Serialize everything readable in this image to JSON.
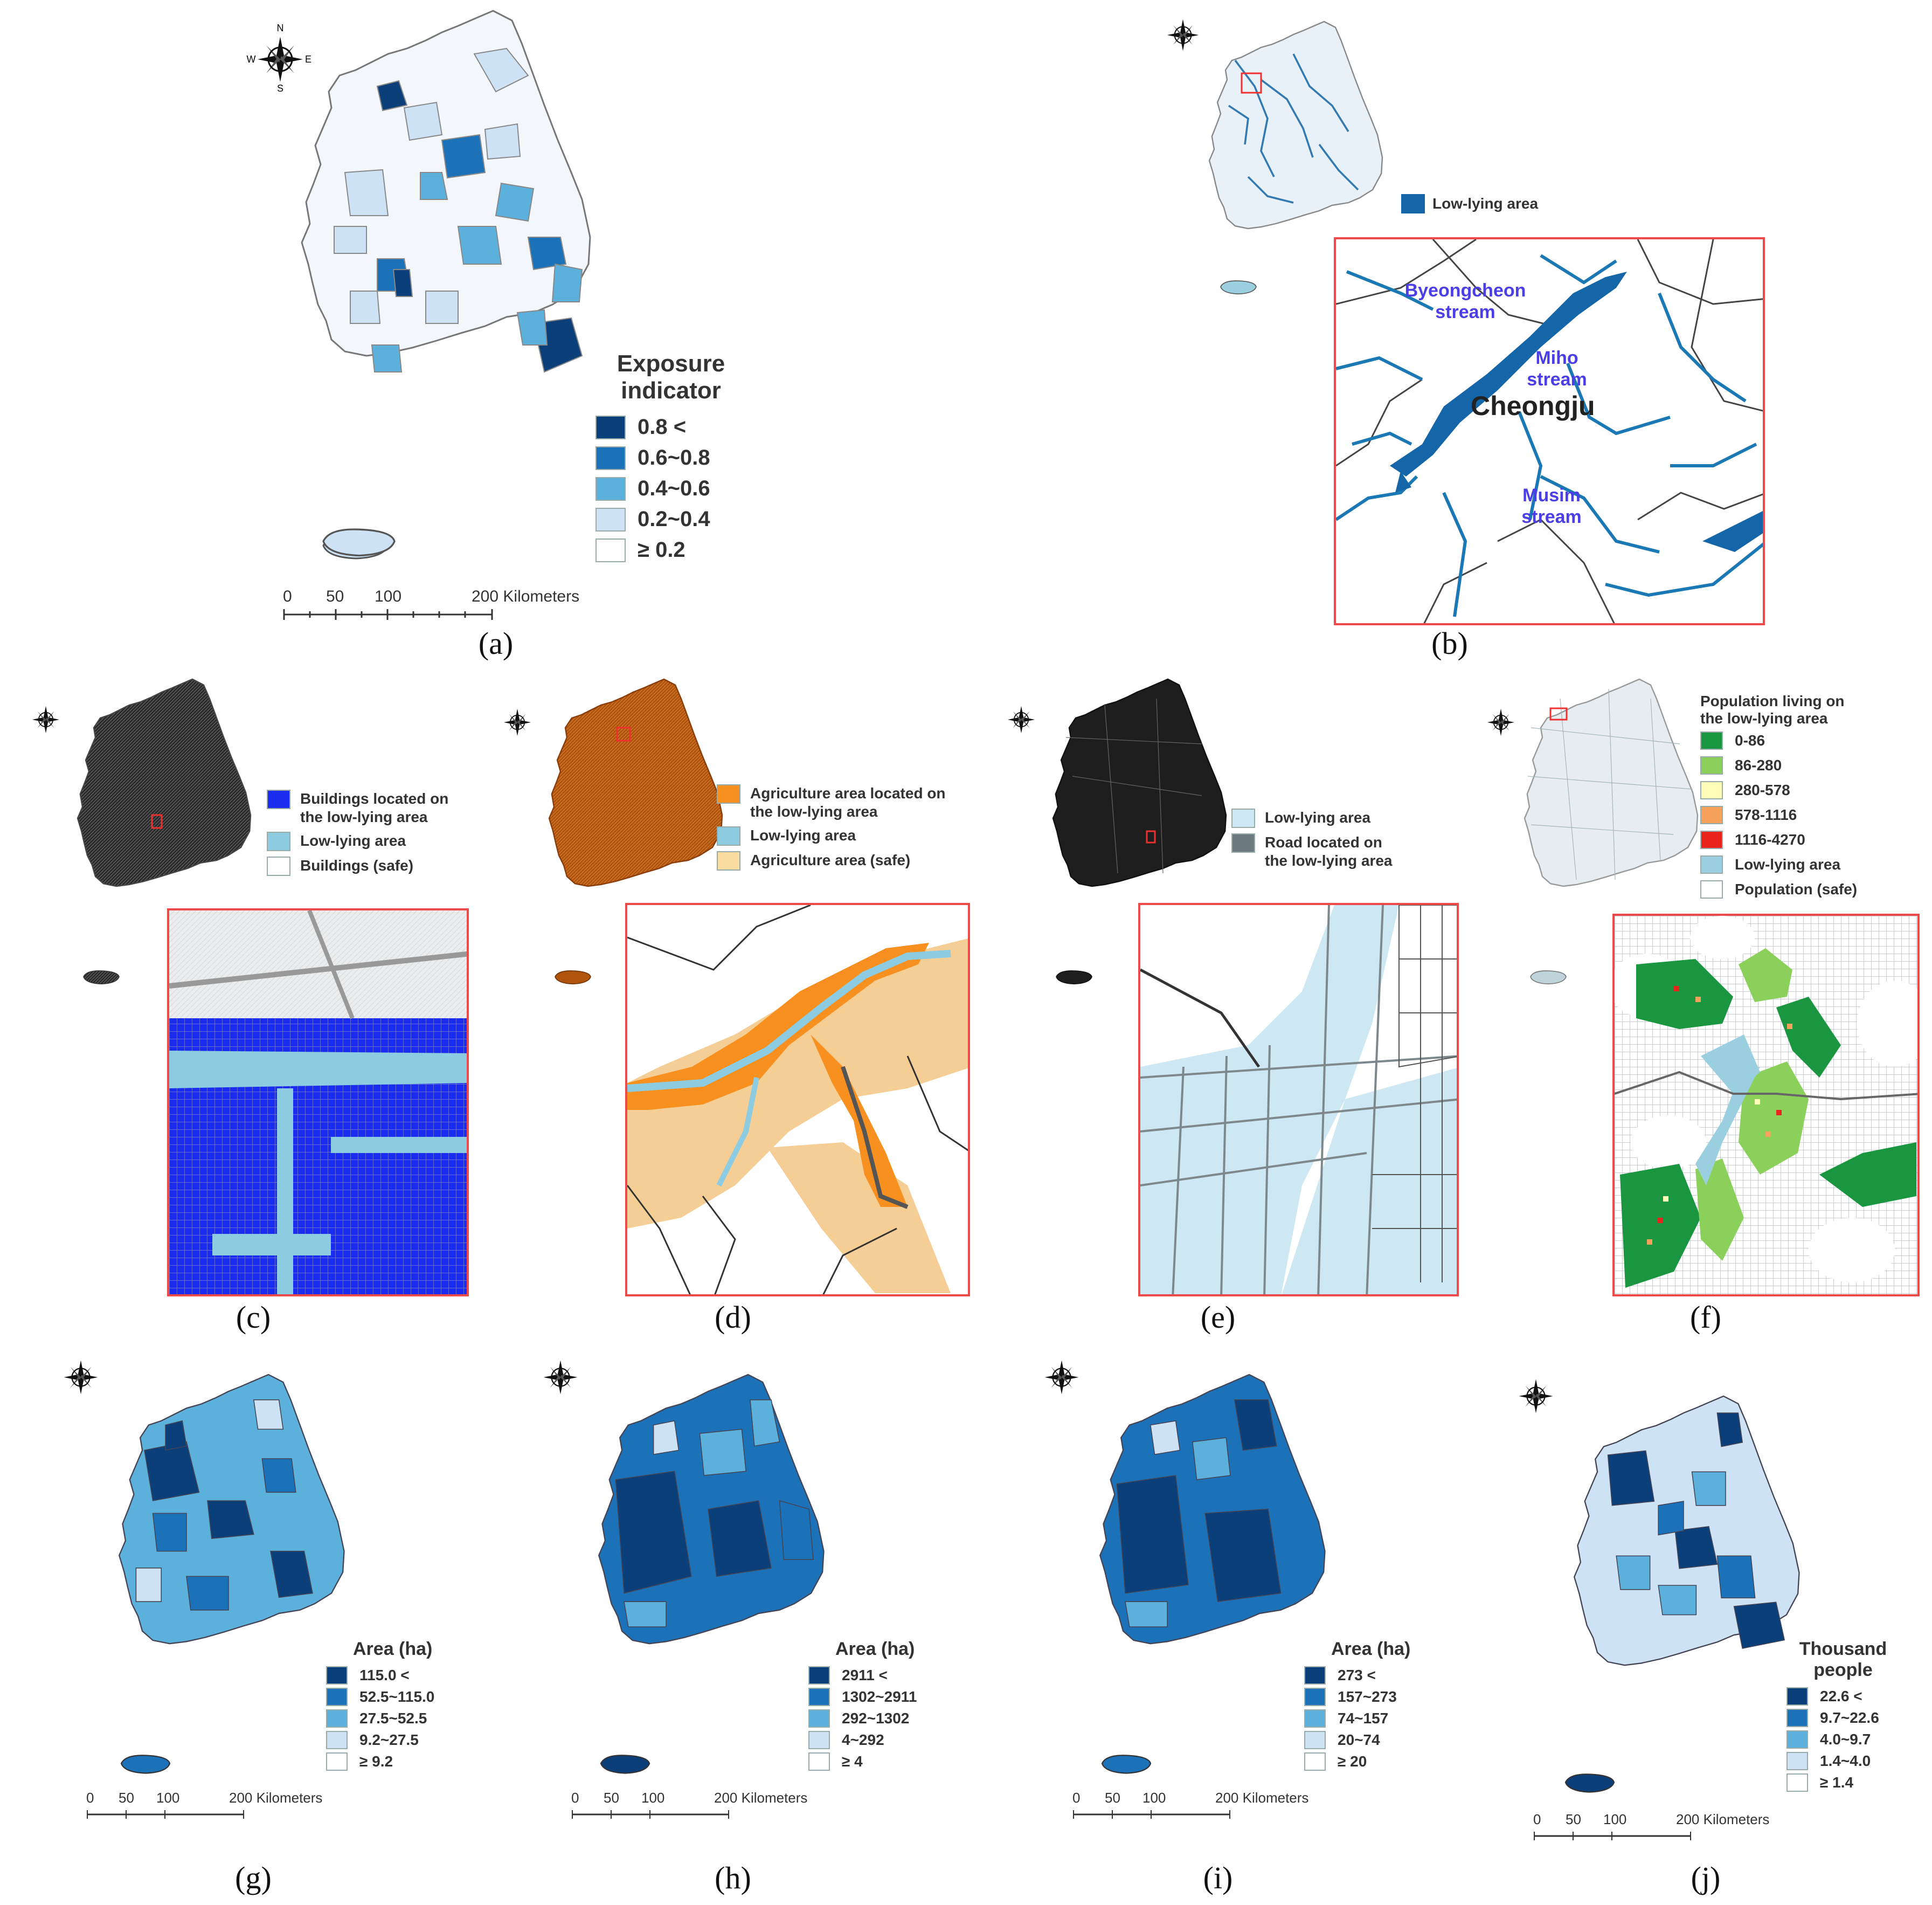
{
  "captions": {
    "a": "(a)",
    "b": "(b)",
    "c": "(c)",
    "d": "(d)",
    "e": "(e)",
    "f": "(f)",
    "g": "(g)",
    "h": "(h)",
    "i": "(i)",
    "j": "(j)"
  },
  "compass": {
    "n": "N",
    "s": "S",
    "e": "E",
    "w": "W"
  },
  "scalebar_ticks": [
    "0",
    "50",
    "100",
    "200 Kilometers"
  ],
  "panel_a": {
    "legend_title_1": "Exposure",
    "legend_title_2": "indicator",
    "classes": [
      {
        "label": "0.8  <",
        "color": "#0b3f7a"
      },
      {
        "label": "0.6~0.8",
        "color": "#1c72b8"
      },
      {
        "label": "0.4~0.6",
        "color": "#5cb0dc"
      },
      {
        "label": "0.2~0.4",
        "color": "#cde3f5"
      },
      {
        "label": "≥ 0.2",
        "color": "#ffffff"
      }
    ]
  },
  "panel_b": {
    "legend": [
      {
        "label": "Low-lying area",
        "color": "#1466a8"
      }
    ],
    "inset_labels": {
      "byeong_1": "Byeongcheon",
      "byeong_2": "stream",
      "miho_1": "Miho",
      "miho_2": "stream",
      "city": "Cheongju",
      "musim_1": "Musim",
      "musim_2": "stream"
    }
  },
  "panel_c": {
    "legend": [
      {
        "label_1": "Buildings located on",
        "label_2": "the low-lying area",
        "color": "#1a2cf0"
      },
      {
        "label_1": "Low-lying area",
        "label_2": "",
        "color": "#8ccbe0"
      },
      {
        "label_1": "Buildings (safe)",
        "label_2": "",
        "color": "#ffffff"
      }
    ]
  },
  "panel_d": {
    "legend": [
      {
        "label_1": "Agriculture area located on",
        "label_2": "the low-lying area",
        "color": "#f7901e"
      },
      {
        "label_1": "Low-lying area",
        "label_2": "",
        "color": "#8ccbe0"
      },
      {
        "label_1": "Agriculture area (safe)",
        "label_2": "",
        "color": "#f9dca0"
      }
    ]
  },
  "panel_e": {
    "legend": [
      {
        "label_1": "Low-lying area",
        "label_2": "",
        "color": "#cde8f2"
      },
      {
        "label_1": "Road located on",
        "label_2": "the low-lying area",
        "color": "#6d7a80"
      }
    ]
  },
  "panel_f": {
    "legend_title_1": "Population living on",
    "legend_title_2": "the low-lying area",
    "classes": [
      {
        "label": "0-86",
        "color": "#1a9641"
      },
      {
        "label": "86-280",
        "color": "#8cd05c"
      },
      {
        "label": "280-578",
        "color": "#fffdb8"
      },
      {
        "label": "578-1116",
        "color": "#f7a25a"
      },
      {
        "label": "1116-4270",
        "color": "#e8241c"
      },
      {
        "label": "Low-lying area",
        "color": "#9acfe0"
      },
      {
        "label": "Population (safe)",
        "color": "#ffffff"
      }
    ]
  },
  "panel_g": {
    "legend_title_1": "Area (ha)",
    "classes": [
      {
        "label": "115.0 <",
        "color": "#0b3f7a"
      },
      {
        "label": "52.5~115.0",
        "color": "#1c72b8"
      },
      {
        "label": "27.5~52.5",
        "color": "#5cb0dc"
      },
      {
        "label": "9.2~27.5",
        "color": "#cde3f5"
      },
      {
        "label": "≥ 9.2",
        "color": "#ffffff"
      }
    ]
  },
  "panel_h": {
    "legend_title_1": "Area (ha)",
    "classes": [
      {
        "label": "2911 <",
        "color": "#0b3f7a"
      },
      {
        "label": "1302~2911",
        "color": "#1c72b8"
      },
      {
        "label": "292~1302",
        "color": "#5cb0dc"
      },
      {
        "label": "4~292",
        "color": "#cde3f5"
      },
      {
        "label": "≥ 4",
        "color": "#ffffff"
      }
    ]
  },
  "panel_i": {
    "legend_title_1": "Area (ha)",
    "classes": [
      {
        "label": "273 <",
        "color": "#0b3f7a"
      },
      {
        "label": "157~273",
        "color": "#1c72b8"
      },
      {
        "label": "74~157",
        "color": "#5cb0dc"
      },
      {
        "label": "20~74",
        "color": "#cde3f5"
      },
      {
        "label": "≥ 20",
        "color": "#ffffff"
      }
    ]
  },
  "panel_j": {
    "legend_title_1": "Thousand",
    "legend_title_2": "people",
    "classes": [
      {
        "label": "22.6 <",
        "color": "#0b3f7a"
      },
      {
        "label": "9.7~22.6",
        "color": "#1c72b8"
      },
      {
        "label": "4.0~9.7",
        "color": "#5cb0dc"
      },
      {
        "label": "1.4~4.0",
        "color": "#cde3f5"
      },
      {
        "label": "≥ 1.4",
        "color": "#ffffff"
      }
    ]
  }
}
